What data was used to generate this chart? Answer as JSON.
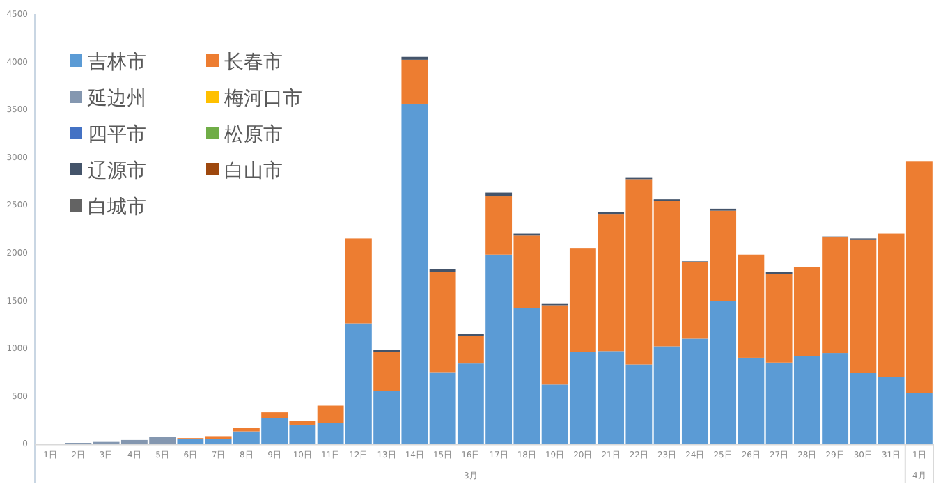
{
  "chart_data": {
    "type": "bar",
    "stacked": true,
    "legend": "top left",
    "grid": false,
    "categories": [
      "1日",
      "2日",
      "3日",
      "4日",
      "5日",
      "6日",
      "7日",
      "8日",
      "9日",
      "10日",
      "11日",
      "12日",
      "13日",
      "14日",
      "15日",
      "16日",
      "17日",
      "18日",
      "19日",
      "20日",
      "21日",
      "22日",
      "23日",
      "24日",
      "25日",
      "26日",
      "27日",
      "28日",
      "29日",
      "30日",
      "31日",
      "1日"
    ],
    "ylim": [
      0,
      4500
    ],
    "yticks": [
      0,
      500,
      1000,
      1500,
      2000,
      2500,
      3000,
      3500,
      4000,
      4500
    ],
    "annotations": [
      "3月",
      "4月"
    ],
    "series": [
      {
        "name": "吉林市",
        "color": "#5b9bd5",
        "values": [
          0,
          0,
          0,
          0,
          0,
          50,
          50,
          130,
          270,
          200,
          220,
          1260,
          550,
          3560,
          750,
          840,
          1980,
          1420,
          620,
          960,
          970,
          830,
          1020,
          1100,
          1490,
          900,
          850,
          920,
          950,
          740,
          700,
          530
        ]
      },
      {
        "name": "长春市",
        "color": "#ed7d31",
        "values": [
          0,
          0,
          0,
          0,
          0,
          10,
          30,
          40,
          60,
          40,
          180,
          890,
          410,
          460,
          1050,
          290,
          610,
          760,
          830,
          1090,
          1430,
          1940,
          1520,
          800,
          950,
          1080,
          930,
          930,
          1210,
          1400,
          1500,
          2430
        ]
      },
      {
        "name": "延边州",
        "color": "#8497b0",
        "values": [
          null,
          10,
          20,
          40,
          70,
          0,
          0,
          0,
          0,
          0,
          0,
          0,
          0,
          0,
          0,
          0,
          0,
          0,
          0,
          0,
          0,
          0,
          0,
          0,
          0,
          0,
          0,
          0,
          0,
          0,
          0,
          0
        ]
      },
      {
        "name": "梅河口市",
        "color": "#ffc000",
        "values": [
          0,
          0,
          0,
          0,
          0,
          0,
          0,
          0,
          0,
          0,
          0,
          0,
          0,
          0,
          0,
          0,
          0,
          0,
          0,
          0,
          0,
          0,
          0,
          0,
          0,
          0,
          0,
          0,
          0,
          0,
          0,
          0
        ]
      },
      {
        "name": "四平市",
        "color": "#4472c4",
        "values": [
          0,
          0,
          0,
          0,
          0,
          0,
          0,
          0,
          0,
          0,
          0,
          0,
          0,
          0,
          0,
          0,
          0,
          0,
          0,
          0,
          0,
          0,
          0,
          0,
          0,
          0,
          0,
          0,
          0,
          0,
          0,
          0
        ]
      },
      {
        "name": "松原市",
        "color": "#70ad47",
        "values": [
          0,
          0,
          0,
          0,
          0,
          0,
          0,
          0,
          0,
          0,
          0,
          0,
          0,
          0,
          0,
          0,
          0,
          0,
          0,
          0,
          0,
          0,
          0,
          0,
          0,
          0,
          0,
          0,
          0,
          0,
          0,
          0
        ]
      },
      {
        "name": "辽源市",
        "color": "#44546a",
        "values": [
          0,
          0,
          0,
          0,
          0,
          0,
          0,
          0,
          0,
          0,
          0,
          0,
          20,
          30,
          30,
          20,
          40,
          20,
          20,
          0,
          30,
          20,
          20,
          10,
          20,
          0,
          20,
          0,
          10,
          10,
          0,
          0
        ]
      },
      {
        "name": "白山市",
        "color": "#9e480e",
        "values": [
          0,
          0,
          0,
          0,
          0,
          0,
          0,
          0,
          0,
          0,
          0,
          0,
          0,
          0,
          0,
          0,
          0,
          0,
          0,
          0,
          0,
          0,
          0,
          0,
          0,
          0,
          0,
          0,
          0,
          0,
          0,
          0
        ]
      },
      {
        "name": "白城市",
        "color": "#636363",
        "values": [
          0,
          0,
          0,
          0,
          0,
          0,
          0,
          0,
          0,
          0,
          0,
          0,
          0,
          0,
          0,
          0,
          0,
          0,
          0,
          0,
          0,
          0,
          0,
          0,
          0,
          0,
          0,
          0,
          0,
          0,
          0,
          0
        ]
      }
    ]
  }
}
